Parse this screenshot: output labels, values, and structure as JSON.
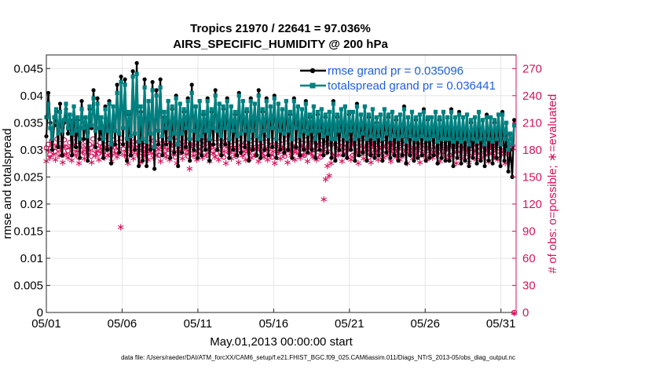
{
  "chart_data": {
    "type": "line",
    "title_line1": "Tropics 21970 / 22641 = 97.036%",
    "title_line2": "AIRS_SPECIFIC_HUMIDITY @ 200 hPa",
    "xlabel": "May.01,2013 00:00:00 start",
    "ylabel_left": "rmse and totalspread",
    "ylabel_right": "# of obs: o=possible; ∗=evaluated",
    "footer": "data file: /Users/raeder/DAI/ATM_forcXX/CAM6_setup/f.e21.FHIST_BGC.f09_025.CAM6assim.011/Diags_NTrS_2013-05/obs_diag_output.nc",
    "x_ticks": [
      "05/01",
      "05/06",
      "05/11",
      "05/16",
      "05/21",
      "05/26",
      "05/31"
    ],
    "x_tick_days": [
      1,
      6,
      11,
      16,
      21,
      26,
      31
    ],
    "xlim": [
      1,
      32
    ],
    "ylim_left": [
      0,
      0.0475
    ],
    "yticks_left": [
      "0",
      "0.005",
      "0.01",
      "0.015",
      "0.02",
      "0.025",
      "0.03",
      "0.035",
      "0.04",
      "0.045"
    ],
    "ytick_values_left": [
      0,
      0.005,
      0.01,
      0.015,
      0.02,
      0.025,
      0.03,
      0.035,
      0.04,
      0.045
    ],
    "ylim_right": [
      0,
      285
    ],
    "yticks_right": [
      "0",
      "30",
      "60",
      "90",
      "120",
      "150",
      "180",
      "210",
      "240",
      "270"
    ],
    "ytick_values_right": [
      0,
      30,
      60,
      90,
      120,
      150,
      180,
      210,
      240,
      270
    ],
    "legend": [
      {
        "label": "rmse grand pr = 0.035096",
        "color": "#000000"
      },
      {
        "label": "totalspread grand pr = 0.036441",
        "color": "#008080"
      }
    ],
    "series": [
      {
        "name": "rmse",
        "color": "#000000",
        "values": [
          0.0325,
          0.0405,
          0.035,
          0.03,
          0.0345,
          0.037,
          0.0305,
          0.0385,
          0.029,
          0.035,
          0.0375,
          0.033,
          0.0355,
          0.029,
          0.038,
          0.0305,
          0.0355,
          0.0285,
          0.039,
          0.032,
          0.036,
          0.028,
          0.0375,
          0.034,
          0.041,
          0.0305,
          0.0395,
          0.032,
          0.0345,
          0.0285,
          0.038,
          0.03,
          0.039,
          0.0275,
          0.038,
          0.031,
          0.042,
          0.0295,
          0.0435,
          0.031,
          0.043,
          0.028,
          0.0365,
          0.029,
          0.0445,
          0.03,
          0.046,
          0.027,
          0.037,
          0.028,
          0.043,
          0.027,
          0.039,
          0.03,
          0.0425,
          0.0265,
          0.041,
          0.031,
          0.043,
          0.029,
          0.036,
          0.031,
          0.039,
          0.0285,
          0.0375,
          0.0295,
          0.04,
          0.027,
          0.0385,
          0.0295,
          0.037,
          0.0305,
          0.0395,
          0.028,
          0.042,
          0.03,
          0.038,
          0.0285,
          0.039,
          0.029,
          0.0365,
          0.03,
          0.0395,
          0.028,
          0.037,
          0.031,
          0.041,
          0.03,
          0.0385,
          0.029,
          0.0375,
          0.031,
          0.0395,
          0.0285,
          0.038,
          0.03,
          0.0365,
          0.029,
          0.0405,
          0.0295,
          0.039,
          0.0305,
          0.037,
          0.028,
          0.0395,
          0.03,
          0.0385,
          0.029,
          0.041,
          0.0285,
          0.037,
          0.03,
          0.0395,
          0.029,
          0.038,
          0.0305,
          0.04,
          0.0285,
          0.0385,
          0.03,
          0.0375,
          0.0295,
          0.039,
          0.03,
          0.0365,
          0.0285,
          0.0395,
          0.0305,
          0.038,
          0.029,
          0.0375,
          0.03,
          0.039,
          0.0295,
          0.036,
          0.03,
          0.038,
          0.0285,
          0.0365,
          0.03,
          0.0375,
          0.029,
          0.036,
          0.0295,
          0.037,
          0.0285,
          0.039,
          0.028,
          0.036,
          0.03,
          0.0375,
          0.029,
          0.038,
          0.0285,
          0.0365,
          0.03,
          0.037,
          0.028,
          0.0385,
          0.029,
          0.0365,
          0.0295,
          0.038,
          0.028,
          0.036,
          0.029,
          0.0375,
          0.0285,
          0.035,
          0.029,
          0.0365,
          0.028,
          0.0375,
          0.0295,
          0.036,
          0.0285,
          0.037,
          0.029,
          0.0355,
          0.028,
          0.0365,
          0.029,
          0.038,
          0.0275,
          0.036,
          0.029,
          0.037,
          0.028,
          0.0355,
          0.0285,
          0.0365,
          0.029,
          0.0375,
          0.028,
          0.0355,
          0.0285,
          0.036,
          0.029,
          0.037,
          0.0275,
          0.0355,
          0.0285,
          0.037,
          0.028,
          0.036,
          0.028,
          0.0375,
          0.027,
          0.036,
          0.0285,
          0.037,
          0.0275,
          0.036,
          0.028,
          0.0365,
          0.027,
          0.035,
          0.0285,
          0.036,
          0.0275,
          0.037,
          0.028,
          0.0355,
          0.027,
          0.0365,
          0.028,
          0.036,
          0.0275,
          0.035,
          0.0285,
          0.0365,
          0.027,
          0.037,
          0.028,
          0.033,
          0.026,
          0.03,
          0.025,
          0.0355
        ]
      },
      {
        "name": "totalspread",
        "color": "#008080",
        "values": [
          0.036,
          0.0385,
          0.034,
          0.032,
          0.036,
          0.0375,
          0.033,
          0.037,
          0.0335,
          0.0355,
          0.0385,
          0.034,
          0.0365,
          0.033,
          0.038,
          0.0335,
          0.036,
          0.032,
          0.0375,
          0.034,
          0.036,
          0.0325,
          0.038,
          0.0345,
          0.0395,
          0.0335,
          0.0385,
          0.034,
          0.036,
          0.032,
          0.0375,
          0.0335,
          0.0385,
          0.031,
          0.038,
          0.0335,
          0.0405,
          0.033,
          0.0425,
          0.034,
          0.042,
          0.032,
          0.037,
          0.0325,
          0.0435,
          0.033,
          0.044,
          0.0315,
          0.038,
          0.032,
          0.0415,
          0.0315,
          0.039,
          0.033,
          0.041,
          0.0305,
          0.04,
          0.0335,
          0.0415,
          0.0325,
          0.037,
          0.034,
          0.039,
          0.032,
          0.038,
          0.033,
          0.0395,
          0.031,
          0.0385,
          0.033,
          0.0375,
          0.034,
          0.039,
          0.032,
          0.0405,
          0.0335,
          0.038,
          0.032,
          0.039,
          0.0325,
          0.037,
          0.0335,
          0.039,
          0.032,
          0.0375,
          0.034,
          0.04,
          0.0335,
          0.0385,
          0.0325,
          0.038,
          0.034,
          0.039,
          0.032,
          0.038,
          0.0335,
          0.037,
          0.0325,
          0.04,
          0.033,
          0.039,
          0.0335,
          0.0375,
          0.032,
          0.039,
          0.0335,
          0.0385,
          0.0325,
          0.04,
          0.032,
          0.0375,
          0.0335,
          0.039,
          0.0325,
          0.038,
          0.034,
          0.0395,
          0.032,
          0.0385,
          0.0335,
          0.0375,
          0.033,
          0.039,
          0.0335,
          0.037,
          0.032,
          0.039,
          0.034,
          0.038,
          0.0325,
          0.0375,
          0.0335,
          0.0385,
          0.033,
          0.0365,
          0.0335,
          0.038,
          0.032,
          0.037,
          0.0335,
          0.0375,
          0.0325,
          0.0365,
          0.033,
          0.037,
          0.032,
          0.0385,
          0.032,
          0.0365,
          0.0335,
          0.0375,
          0.0325,
          0.038,
          0.032,
          0.037,
          0.0335,
          0.037,
          0.032,
          0.038,
          0.0325,
          0.0365,
          0.033,
          0.038,
          0.032,
          0.0365,
          0.0325,
          0.0375,
          0.032,
          0.036,
          0.0325,
          0.0365,
          0.032,
          0.0375,
          0.033,
          0.0365,
          0.032,
          0.037,
          0.0325,
          0.036,
          0.032,
          0.0365,
          0.0325,
          0.0375,
          0.0315,
          0.036,
          0.0325,
          0.037,
          0.032,
          0.036,
          0.032,
          0.0365,
          0.0325,
          0.037,
          0.032,
          0.036,
          0.032,
          0.036,
          0.0325,
          0.037,
          0.0315,
          0.036,
          0.032,
          0.037,
          0.032,
          0.036,
          0.032,
          0.037,
          0.0315,
          0.036,
          0.032,
          0.0365,
          0.0315,
          0.036,
          0.032,
          0.0365,
          0.031,
          0.0355,
          0.032,
          0.036,
          0.0315,
          0.037,
          0.032,
          0.0355,
          0.031,
          0.036,
          0.032,
          0.036,
          0.0315,
          0.0355,
          0.032,
          0.0365,
          0.031,
          0.0365,
          0.032,
          0.035,
          0.03,
          0.033,
          0.031,
          0.0345
        ]
      },
      {
        "name": "obs_possible",
        "marker": "o",
        "color": "#d6135d",
        "values": [
          182,
          186,
          175,
          190,
          183,
          178,
          192,
          180,
          187,
          174,
          191,
          183,
          179,
          188,
          176,
          193,
          181,
          185,
          172,
          190,
          184,
          177,
          189,
          182,
          186,
          173,
          192,
          180,
          185,
          176,
          188,
          183,
          178,
          190,
          181,
          187,
          174,
          191,
          183,
          179,
          188,
          176,
          193,
          181,
          185,
          172,
          190,
          184,
          177,
          189,
          182,
          186,
          173,
          192,
          180,
          185,
          176,
          188,
          183,
          178,
          190,
          181,
          187,
          174,
          191,
          183,
          179,
          188,
          176,
          193,
          181,
          185,
          172,
          190,
          184,
          177,
          189,
          182,
          186,
          173,
          192,
          180,
          185,
          176,
          188,
          183,
          178,
          190,
          181,
          187,
          174,
          191,
          183,
          179,
          188,
          176,
          193,
          181,
          185,
          172,
          190,
          184,
          177,
          189,
          182,
          186,
          173,
          192,
          180,
          185,
          176,
          188,
          183,
          178,
          190,
          181,
          187,
          174,
          191,
          183,
          179,
          188,
          176,
          193,
          181,
          185,
          172,
          190,
          184,
          177,
          189,
          182,
          186,
          173,
          192,
          180,
          185,
          176,
          188,
          183,
          178,
          190,
          181,
          187,
          174,
          191,
          183,
          179,
          188,
          176,
          193,
          181,
          185,
          172,
          190,
          184,
          177,
          189,
          182,
          186,
          173,
          192,
          180,
          185,
          176,
          188,
          183,
          178,
          190,
          181,
          187,
          174,
          191,
          183,
          179,
          188,
          176,
          193,
          181,
          185,
          172,
          190,
          184,
          177,
          189,
          182,
          186,
          173,
          192,
          180,
          185,
          176,
          188,
          183,
          178,
          190,
          181,
          187,
          174,
          191,
          183,
          179,
          188,
          176,
          193,
          181,
          185,
          172,
          190,
          184,
          177,
          189,
          182,
          186,
          173,
          192,
          180,
          185,
          176,
          188,
          183,
          178,
          190,
          181,
          187,
          174,
          191,
          183,
          179,
          188,
          176,
          193,
          181,
          185,
          172,
          190,
          184,
          177,
          189,
          182,
          186,
          173,
          192,
          180,
          185,
          176,
          188,
          183,
          178,
          190,
          181,
          187,
          174,
          191,
          183,
          179,
          188,
          176,
          193,
          181,
          185,
          0
        ]
      },
      {
        "name": "obs_evaluated",
        "marker": "*",
        "color": "#d6135d",
        "values": [
          168,
          180,
          172,
          185,
          176,
          170,
          186,
          174,
          181,
          167,
          184,
          176,
          172,
          183,
          169,
          187,
          175,
          179,
          166,
          184,
          178,
          171,
          183,
          176,
          180,
          167,
          186,
          174,
          179,
          170,
          182,
          177,
          172,
          184,
          175,
          181,
          168,
          185,
          177,
          173,
          182,
          95,
          187,
          175,
          179,
          166,
          184,
          178,
          171,
          183,
          176,
          180,
          167,
          186,
          174,
          179,
          170,
          182,
          177,
          172,
          184,
          175,
          181,
          168,
          185,
          177,
          173,
          182,
          170,
          187,
          175,
          179,
          166,
          184,
          178,
          171,
          183,
          176,
          180,
          160,
          186,
          174,
          179,
          170,
          182,
          177,
          172,
          184,
          175,
          181,
          168,
          185,
          177,
          173,
          182,
          170,
          187,
          175,
          179,
          166,
          184,
          178,
          171,
          183,
          176,
          180,
          167,
          186,
          174,
          179,
          170,
          182,
          177,
          172,
          184,
          175,
          181,
          168,
          185,
          177,
          173,
          182,
          170,
          187,
          175,
          179,
          166,
          184,
          178,
          171,
          183,
          176,
          180,
          167,
          186,
          174,
          179,
          170,
          182,
          177,
          172,
          184,
          175,
          181,
          168,
          185,
          177,
          173,
          182,
          170,
          187,
          175,
          179,
          126,
          148,
          163,
          152,
          166,
          175,
          172,
          184,
          175,
          181,
          168,
          185,
          177,
          173,
          182,
          170,
          187,
          175,
          179,
          166,
          184,
          178,
          171,
          183,
          176,
          180,
          167,
          186,
          174,
          179,
          170,
          182,
          177,
          172,
          184,
          175,
          181,
          168,
          185,
          177,
          173,
          182,
          170,
          187,
          175,
          179,
          166,
          184,
          178,
          171,
          183,
          176,
          180,
          167,
          186,
          174,
          179,
          170,
          182,
          177,
          172,
          184,
          175,
          181,
          168,
          185,
          177,
          173,
          182,
          170,
          187,
          175,
          179,
          166,
          184,
          178,
          171,
          183,
          176,
          180,
          167,
          186,
          174,
          179,
          170,
          182,
          177,
          172,
          184,
          175,
          181,
          168,
          185,
          177,
          173,
          182,
          170,
          187,
          175,
          179,
          166,
          184,
          178,
          171,
          183,
          0
        ]
      }
    ]
  }
}
